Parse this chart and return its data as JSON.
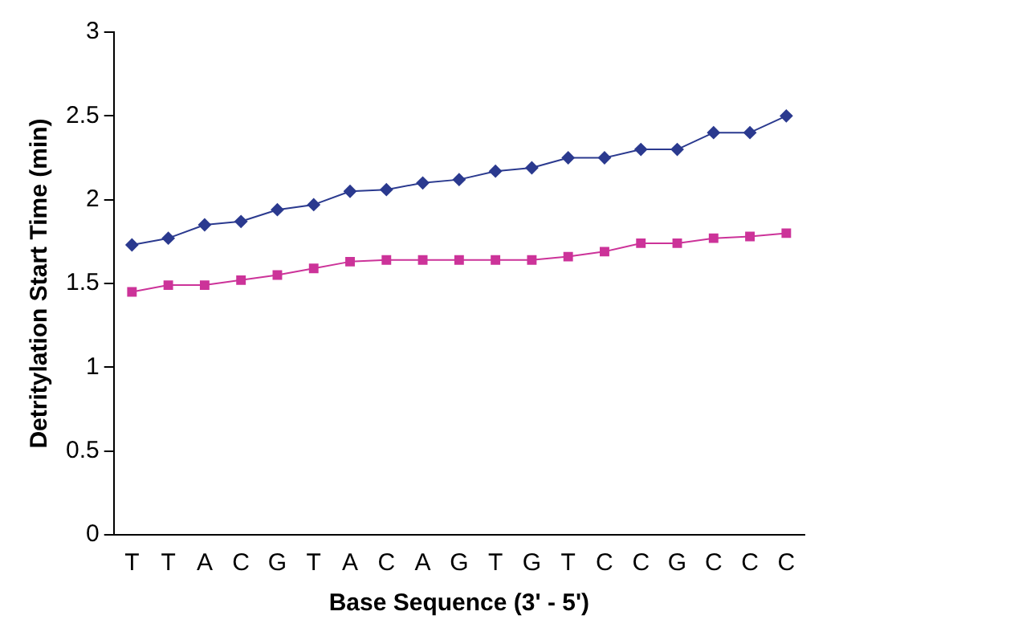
{
  "chart_data": {
    "type": "line",
    "xlabel": "Base Sequence (3' - 5')",
    "ylabel": "Detritylation Start Time (min)",
    "categories": [
      "T",
      "T",
      "A",
      "C",
      "G",
      "T",
      "A",
      "C",
      "A",
      "G",
      "T",
      "G",
      "T",
      "C",
      "C",
      "G",
      "C",
      "C",
      "C"
    ],
    "series": [
      {
        "color": "#2b3a8f",
        "marker": "diamond",
        "values": [
          1.73,
          1.77,
          1.85,
          1.87,
          1.94,
          1.97,
          2.05,
          2.06,
          2.1,
          2.12,
          2.17,
          2.19,
          2.25,
          2.25,
          2.3,
          2.3,
          2.4,
          2.4,
          2.5
        ]
      },
      {
        "color": "#cc3399",
        "marker": "square",
        "values": [
          1.45,
          1.49,
          1.49,
          1.52,
          1.55,
          1.59,
          1.63,
          1.64,
          1.64,
          1.64,
          1.64,
          1.64,
          1.66,
          1.69,
          1.74,
          1.74,
          1.77,
          1.78,
          1.8
        ]
      }
    ],
    "ylim": [
      0,
      3
    ],
    "yticks": [
      0,
      0.5,
      1,
      1.5,
      2,
      2.5,
      3
    ],
    "grid": false,
    "legend": false,
    "line_style": "solid"
  }
}
